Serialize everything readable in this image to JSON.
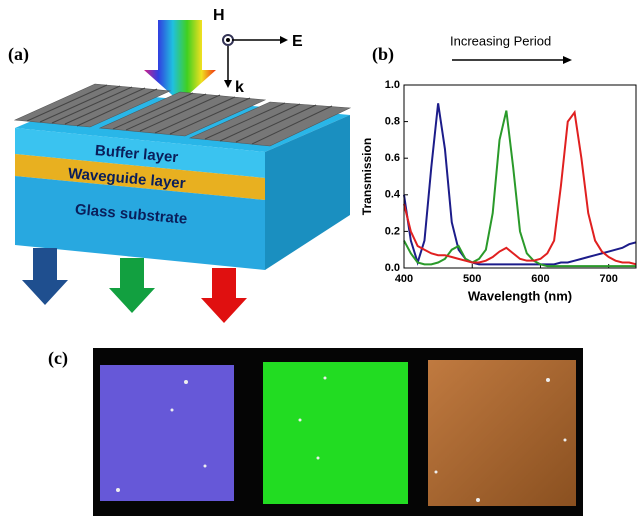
{
  "panel_a": {
    "label": "(a)",
    "field_labels": {
      "h": "H",
      "e": "E",
      "k": "k"
    },
    "layers": [
      "Buffer layer",
      "Waveguide layer",
      "Glass substrate"
    ]
  },
  "panel_b_label": "(b)",
  "panel_c_label": "(c)",
  "chart_data": {
    "type": "line",
    "annotation": "Increasing Period",
    "x_label": "Wavelength (nm)",
    "y_label": "Transmission",
    "x": [
      400,
      410,
      420,
      430,
      440,
      450,
      460,
      470,
      480,
      490,
      500,
      510,
      520,
      530,
      540,
      550,
      560,
      570,
      580,
      590,
      600,
      610,
      620,
      630,
      640,
      650,
      660,
      670,
      680,
      690,
      700,
      710,
      720,
      730,
      740
    ],
    "xlim": [
      400,
      740
    ],
    "xticks": [
      400,
      500,
      600,
      700
    ],
    "ylim": [
      0,
      1
    ],
    "yticks": [
      {
        "value": 0,
        "label": "0.0"
      },
      0.2,
      0.4,
      0.6,
      0.8,
      {
        "value": 1,
        "label": "1.0"
      }
    ],
    "series": [
      {
        "color": "#1c1c8a",
        "values": [
          0.4,
          0.15,
          0.03,
          0.15,
          0.55,
          0.9,
          0.65,
          0.25,
          0.1,
          0.05,
          0.03,
          0.02,
          0.02,
          0.02,
          0.02,
          0.02,
          0.02,
          0.02,
          0.02,
          0.02,
          0.02,
          0.02,
          0.02,
          0.03,
          0.03,
          0.04,
          0.05,
          0.06,
          0.07,
          0.08,
          0.09,
          0.1,
          0.11,
          0.13,
          0.14
        ]
      },
      {
        "color": "#2a9a2a",
        "values": [
          0.15,
          0.08,
          0.03,
          0.02,
          0.02,
          0.03,
          0.05,
          0.1,
          0.12,
          0.05,
          0.03,
          0.05,
          0.1,
          0.3,
          0.7,
          0.86,
          0.55,
          0.2,
          0.08,
          0.04,
          0.02,
          0.01,
          0.01,
          0.01,
          0.01,
          0.01,
          0.01,
          0.01,
          0.01,
          0.01,
          0.01,
          0.01,
          0.01,
          0.01,
          0.01
        ]
      },
      {
        "color": "#e02020",
        "values": [
          0.35,
          0.2,
          0.12,
          0.1,
          0.08,
          0.07,
          0.07,
          0.06,
          0.05,
          0.04,
          0.03,
          0.03,
          0.04,
          0.06,
          0.09,
          0.11,
          0.08,
          0.05,
          0.04,
          0.04,
          0.05,
          0.08,
          0.15,
          0.45,
          0.8,
          0.85,
          0.6,
          0.3,
          0.15,
          0.09,
          0.06,
          0.04,
          0.03,
          0.03,
          0.02
        ]
      }
    ]
  }
}
